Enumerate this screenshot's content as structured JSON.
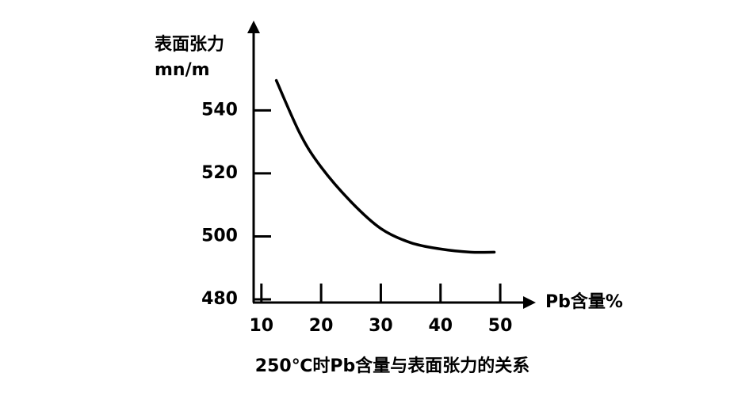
{
  "chart_data": {
    "type": "line",
    "title": "250℃时Pb含量与表面张力的关系",
    "y_label_line1": "表面张力",
    "y_label_line2": "mn/m",
    "x_label": "Pb含量%",
    "x": [
      12.5,
      16.5,
      20,
      25,
      30,
      35,
      40,
      45,
      49
    ],
    "series": [
      {
        "name": "表面张力",
        "color": "#000000",
        "values": [
          549.5,
          532.5,
          522,
          511,
          502.5,
          498,
          496,
          495,
          495
        ]
      }
    ],
    "xlim": [
      8.7,
      54.5
    ],
    "xticks": [
      10,
      20,
      30,
      40,
      50
    ],
    "ylim": [
      480,
      566
    ],
    "yticks": [
      480,
      500,
      520,
      540
    ]
  }
}
